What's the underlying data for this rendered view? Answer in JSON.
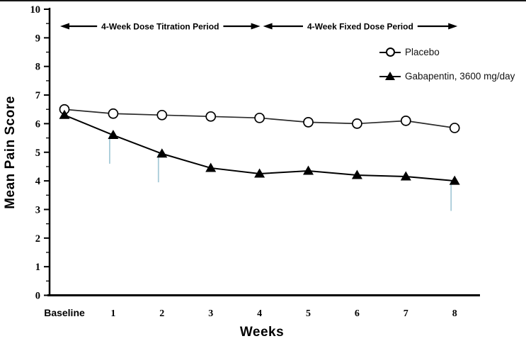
{
  "chart_data": {
    "type": "line",
    "title": "",
    "xlabel": "Weeks",
    "ylabel": "Mean Pain Score",
    "ylim": [
      0,
      10
    ],
    "y_ticks": [
      0,
      1,
      2,
      3,
      4,
      5,
      6,
      7,
      8,
      9,
      10
    ],
    "y_minor_tick_step": 0.5,
    "grid": false,
    "categories": [
      "Baseline",
      "1",
      "2",
      "3",
      "4",
      "5",
      "6",
      "7",
      "8"
    ],
    "series": [
      {
        "name": "Placebo",
        "marker": "open-circle",
        "color": "#2b2b2b",
        "values": [
          6.5,
          6.35,
          6.3,
          6.25,
          6.2,
          6.05,
          6.0,
          6.1,
          5.85
        ]
      },
      {
        "name": "Gabapentin, 3600 mg/day",
        "marker": "filled-triangle",
        "color": "#000000",
        "values": [
          6.3,
          5.6,
          4.95,
          4.45,
          4.25,
          4.35,
          4.2,
          4.15,
          4.0
        ]
      }
    ],
    "error_bars": {
      "series": "Gabapentin, 3600 mg/day",
      "direction": "down",
      "color": "#a7cbd8",
      "bars": [
        {
          "category": "1",
          "from": 5.6,
          "to": 4.6
        },
        {
          "category": "2",
          "from": 4.95,
          "to": 3.95
        },
        {
          "category": "8",
          "from": 4.0,
          "to": 2.95
        }
      ]
    },
    "annotations": [
      {
        "text": "4-Week Dose Titration Period",
        "style": "double-arrow",
        "from_category": "Baseline",
        "to_category": "4"
      },
      {
        "text": "4-Week Fixed Dose Period",
        "style": "double-arrow",
        "from_category": "4",
        "to_category": "8"
      }
    ],
    "legend": {
      "position": "upper-right",
      "entries": [
        "Placebo",
        "Gabapentin, 3600 mg/day"
      ]
    },
    "colors": {
      "axis": "#000000",
      "tick_label": "#000000",
      "error_bar": "#a7cbd8",
      "background": "#ffffff"
    }
  }
}
